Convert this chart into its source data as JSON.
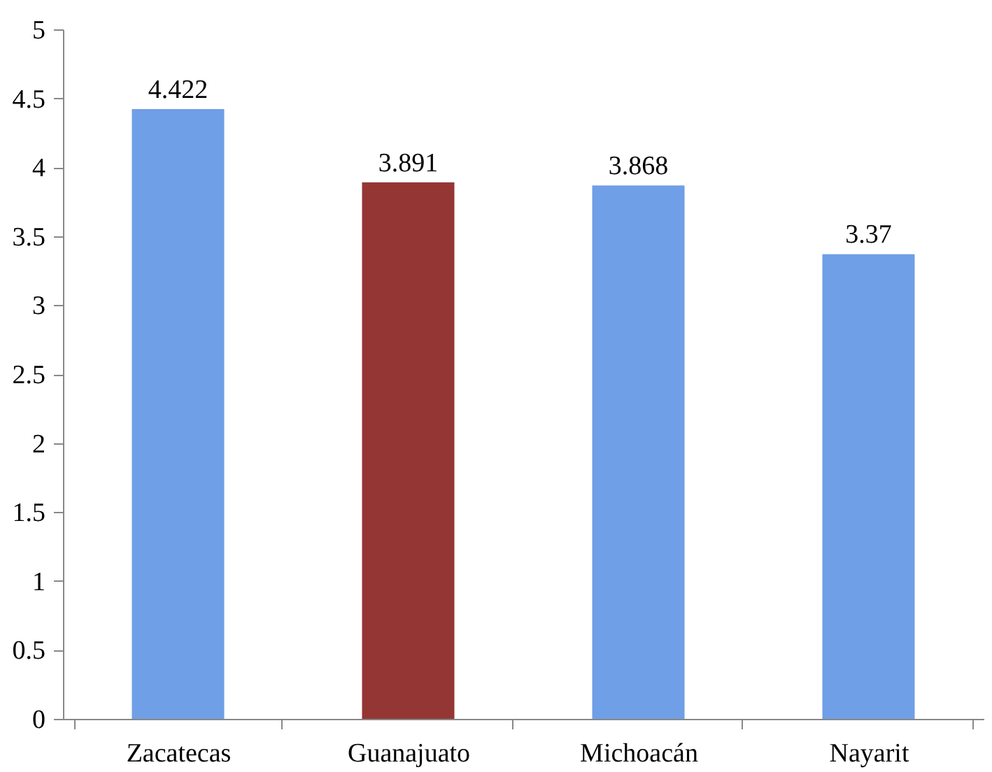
{
  "chart_data": {
    "type": "bar",
    "categories": [
      "Zacatecas",
      "Guanajuato",
      "Michoacán",
      "Nayarit"
    ],
    "values": [
      4.422,
      3.891,
      3.868,
      3.37
    ],
    "colors": [
      "#6f9fe6",
      "#943634",
      "#6f9fe6",
      "#6f9fe6"
    ],
    "ylim": [
      0,
      5
    ],
    "yticks": [
      0,
      0.5,
      1,
      1.5,
      2,
      2.5,
      3,
      3.5,
      4,
      4.5,
      5
    ],
    "data_labels": true,
    "grid": false
  }
}
